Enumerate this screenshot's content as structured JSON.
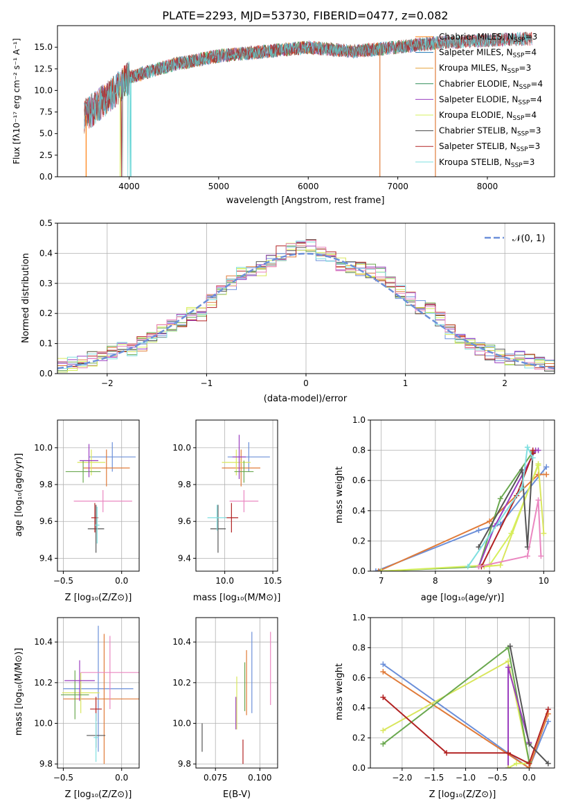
{
  "colors": {
    "spectrum": [
      "#ff7f0e",
      "#1f77b4",
      "#2ca02c",
      "#d62728",
      "#9467bd",
      "#8c564b",
      "#7f7f7f",
      "#b22222",
      "#5fd3d3"
    ],
    "lines": [
      "#6b8fd9",
      "#e07b39",
      "#d9e65c",
      "#6aa84f",
      "#9a3dbf",
      "#d6ef5c",
      "#555555",
      "#b22222",
      "#7fdfe0",
      "#ea86c0"
    ],
    "gauss": "#6b8fd9"
  },
  "chart_data": [
    {
      "type": "line",
      "title": "PLATE=2293, MJD=53730, FIBERID=0477, z=0.082",
      "xlabel": "wavelength [Angstrom, rest frame]",
      "ylabel": "Flux [fλ10⁻¹⁷ erg cm⁻² s⁻¹ A⁻¹]",
      "xlim": [
        3200,
        8750
      ],
      "ylim": [
        0,
        17.5
      ],
      "xticks": [
        "4000",
        "5000",
        "6000",
        "7000",
        "8000"
      ],
      "yticks": [
        "0.0",
        "2.5",
        "5.0",
        "7.5",
        "10.0",
        "12.5",
        "15.0"
      ],
      "legend_placement": "upper-right",
      "legend": [
        "Chabrier MILES, N_SSP=3",
        "Salpeter MILES, N_SSP=4",
        "Kroupa MILES, N_SSP=3",
        "Chabrier ELODIE, N_SSP=4",
        "Salpeter ELODIE, N_SSP=4",
        "Kroupa ELODIE, N_SSP=4",
        "Chabrier STELIB, N_SSP=3",
        "Salpeter STELIB, N_SSP=3",
        "Kroupa STELIB, N_SSP=3"
      ],
      "series_shape": {
        "x": [
          3500,
          3800,
          4000,
          4500,
          5000,
          5500,
          6000,
          6500,
          7000,
          7400,
          8500
        ],
        "y": [
          7.0,
          9.5,
          11.5,
          13.0,
          14.0,
          14.5,
          15.0,
          14.5,
          15.0,
          15.5,
          16.0
        ]
      }
    },
    {
      "type": "bar",
      "xlabel": "(data-model)/error",
      "ylabel": "Normed distribution",
      "xlim": [
        -2.5,
        2.5
      ],
      "ylim": [
        0,
        0.5
      ],
      "xticks": [
        "−2",
        "−1",
        "0",
        "1",
        "2"
      ],
      "yticks": [
        "0.0",
        "0.1",
        "0.2",
        "0.3",
        "0.4",
        "0.5"
      ],
      "grid": true,
      "legend_placement": "upper-right",
      "legend": [
        "𝒩(0, 1)"
      ],
      "histogram_centers": [
        -2.45,
        -2.35,
        -2.25,
        -2.15,
        -2.05,
        -1.95,
        -1.85,
        -1.75,
        -1.65,
        -1.55,
        -1.45,
        -1.35,
        -1.25,
        -1.15,
        -1.05,
        -0.95,
        -0.85,
        -0.75,
        -0.65,
        -0.55,
        -0.45,
        -0.35,
        -0.25,
        -0.15,
        -0.05,
        0.05,
        0.15,
        0.25,
        0.35,
        0.45,
        0.55,
        0.65,
        0.75,
        0.85,
        0.95,
        1.05,
        1.15,
        1.25,
        1.35,
        1.45,
        1.55,
        1.65,
        1.75,
        1.85,
        1.95,
        2.05,
        2.15,
        2.25,
        2.35,
        2.45
      ],
      "histogram_values": [
        0.03,
        0.035,
        0.04,
        0.05,
        0.05,
        0.07,
        0.08,
        0.08,
        0.1,
        0.12,
        0.14,
        0.16,
        0.18,
        0.2,
        0.2,
        0.24,
        0.27,
        0.3,
        0.33,
        0.34,
        0.35,
        0.38,
        0.4,
        0.41,
        0.42,
        0.43,
        0.4,
        0.39,
        0.36,
        0.36,
        0.35,
        0.34,
        0.33,
        0.3,
        0.27,
        0.25,
        0.22,
        0.21,
        0.18,
        0.14,
        0.12,
        0.1,
        0.08,
        0.07,
        0.06,
        0.05,
        0.05,
        0.04,
        0.03,
        0.03
      ]
    },
    {
      "type": "scatter",
      "xlabel": "Z [log₁₀(Z/Z⊙)]",
      "ylabel": "age  [log₁₀(age/yr)]",
      "xlim": [
        -0.55,
        0.15
      ],
      "ylim": [
        9.33,
        10.15
      ],
      "xticks": [
        "−0.5",
        "0.0"
      ],
      "yticks": [
        "9.4",
        "9.6",
        "9.8",
        "10.0"
      ],
      "points": [
        {
          "x": -0.08,
          "y": 9.95,
          "xerr": 0.2,
          "yerr": 0.08
        },
        {
          "x": -0.13,
          "y": 9.89,
          "xerr": 0.2,
          "yerr": 0.1
        },
        {
          "x": -0.26,
          "y": 9.92,
          "xerr": 0.12,
          "yerr": 0.07
        },
        {
          "x": -0.33,
          "y": 9.87,
          "xerr": 0.15,
          "yerr": 0.06
        },
        {
          "x": -0.28,
          "y": 9.93,
          "xerr": 0.08,
          "yerr": 0.09
        },
        {
          "x": -0.16,
          "y": 9.71,
          "xerr": 0.25,
          "yerr": 0.06
        },
        {
          "x": -0.22,
          "y": 9.56,
          "xerr": 0.07,
          "yerr": 0.13
        },
        {
          "x": -0.23,
          "y": 9.62,
          "xerr": 0.03,
          "yerr": 0.08
        },
        {
          "x": -0.21,
          "y": 9.58,
          "xerr": 0.02,
          "yerr": 0.1
        }
      ]
    },
    {
      "type": "scatter",
      "xlabel": "mass [log₁₀(M/M⊙)]",
      "ylabel": "",
      "xlim": [
        9.7,
        10.55
      ],
      "ylim": [
        9.33,
        10.15
      ],
      "xticks": [
        "10.0",
        "10.5"
      ],
      "yticks": [
        "9.4",
        "9.6",
        "9.8",
        "10.0"
      ],
      "points": [
        {
          "x": 10.25,
          "y": 9.95,
          "xerr": 0.22,
          "yerr": 0.08
        },
        {
          "x": 10.17,
          "y": 9.89,
          "xerr": 0.2,
          "yerr": 0.1
        },
        {
          "x": 10.12,
          "y": 9.92,
          "xerr": 0.15,
          "yerr": 0.07
        },
        {
          "x": 10.2,
          "y": 9.87,
          "xerr": 0.1,
          "yerr": 0.06
        },
        {
          "x": 10.15,
          "y": 9.95,
          "xerr": 0.07,
          "yerr": 0.12
        },
        {
          "x": 10.2,
          "y": 9.71,
          "xerr": 0.15,
          "yerr": 0.06
        },
        {
          "x": 9.93,
          "y": 9.56,
          "xerr": 0.08,
          "yerr": 0.13
        },
        {
          "x": 10.07,
          "y": 9.62,
          "xerr": 0.07,
          "yerr": 0.08
        },
        {
          "x": 9.92,
          "y": 9.62,
          "xerr": 0.1,
          "yerr": 0.07
        }
      ]
    },
    {
      "type": "line",
      "xlabel": "age  [log₁₀(age/yr)]",
      "ylabel": "mass weight",
      "xlim": [
        6.8,
        10.2
      ],
      "ylim": [
        0,
        1
      ],
      "xticks": [
        "7",
        "8",
        "9",
        "10"
      ],
      "yticks": [
        "0.0",
        "0.2",
        "0.4",
        "0.6",
        "0.8",
        "1.0"
      ],
      "grid": true,
      "series": [
        {
          "x": [
            6.9,
            8.8,
            9.2,
            10.05
          ],
          "y": [
            0.0,
            0.27,
            0.31,
            0.69
          ]
        },
        {
          "x": [
            6.95,
            9.0,
            9.9,
            10.05
          ],
          "y": [
            0.0,
            0.33,
            0.64,
            0.64
          ]
        },
        {
          "x": [
            8.9,
            9.2,
            9.9,
            10.0
          ],
          "y": [
            0.03,
            0.04,
            0.71,
            0.25
          ]
        },
        {
          "x": [
            7.0,
            8.8,
            9.2,
            9.8
          ],
          "y": [
            0.0,
            0.03,
            0.48,
            0.79
          ]
        },
        {
          "x": [
            8.8,
            9.1,
            9.85,
            9.9
          ],
          "y": [
            0.03,
            0.3,
            0.8,
            0.8
          ]
        },
        {
          "x": [
            7.0,
            9.0,
            9.4,
            9.9
          ],
          "y": [
            0.0,
            0.04,
            0.25,
            0.7
          ]
        },
        {
          "x": [
            8.8,
            9.6,
            9.7,
            9.8
          ],
          "y": [
            0.16,
            0.67,
            0.16,
            0.78
          ]
        },
        {
          "x": [
            8.85,
            9.5,
            9.8,
            9.8
          ],
          "y": [
            0.03,
            0.5,
            0.78,
            0.8
          ]
        },
        {
          "x": [
            8.6,
            9.6,
            9.7,
            9.8
          ],
          "y": [
            0.03,
            0.55,
            0.82,
            0.75
          ]
        },
        {
          "x": [
            8.8,
            9.7,
            9.9,
            9.95
          ],
          "y": [
            0.03,
            0.1,
            0.47,
            0.1
          ]
        }
      ]
    },
    {
      "type": "scatter",
      "xlabel": "Z [log₁₀(Z/Z⊙)]",
      "ylabel": "mass [log₁₀(M/M⊙)]",
      "xlim": [
        -0.55,
        0.15
      ],
      "ylim": [
        9.78,
        10.52
      ],
      "xticks": [
        "−0.5",
        "0.0"
      ],
      "yticks": [
        "9.8",
        "10.0",
        "10.2",
        "10.4"
      ],
      "points": [
        {
          "x": -0.2,
          "y": 10.17,
          "xerr": 0.3,
          "yerr": 0.31
        },
        {
          "x": -0.15,
          "y": 10.12,
          "xerr": 0.35,
          "yerr": 0.32
        },
        {
          "x": -0.35,
          "y": 10.15,
          "xerr": 0.16,
          "yerr": 0.1
        },
        {
          "x": -0.4,
          "y": 10.14,
          "xerr": 0.12,
          "yerr": 0.12
        },
        {
          "x": -0.36,
          "y": 10.21,
          "xerr": 0.13,
          "yerr": 0.1
        },
        {
          "x": -0.1,
          "y": 10.25,
          "xerr": 0.25,
          "yerr": 0.18
        },
        {
          "x": -0.22,
          "y": 9.94,
          "xerr": 0.08,
          "yerr": 0.06
        },
        {
          "x": -0.22,
          "y": 10.07,
          "xerr": 0.05,
          "yerr": 0.06
        },
        {
          "x": -0.22,
          "y": 9.93,
          "xerr": 0.02,
          "yerr": 0.12
        }
      ]
    },
    {
      "type": "scatter",
      "xlabel": "E(B-V)",
      "ylabel": "",
      "xlim": [
        0.064,
        0.11
      ],
      "ylim": [
        9.78,
        10.52
      ],
      "xticks": [
        "0.075",
        "0.100"
      ],
      "yticks": [
        "9.8",
        "10.0",
        "10.2",
        "10.4"
      ],
      "points": [
        {
          "x": 0.0955,
          "y": 10.25,
          "yerr": 0.2
        },
        {
          "x": 0.0925,
          "y": 10.2,
          "yerr": 0.16
        },
        {
          "x": 0.087,
          "y": 10.1,
          "yerr": 0.13
        },
        {
          "x": 0.0915,
          "y": 10.18,
          "yerr": 0.12
        },
        {
          "x": 0.0865,
          "y": 10.05,
          "yerr": 0.08
        },
        {
          "x": 0.106,
          "y": 10.27,
          "yerr": 0.18
        },
        {
          "x": 0.0675,
          "y": 9.93,
          "yerr": 0.07
        },
        {
          "x": 0.0905,
          "y": 9.86,
          "yerr": 0.06
        }
      ]
    },
    {
      "type": "line",
      "xlabel": "Z [log₁₀(Z/Z⊙)]",
      "ylabel": "mass weight",
      "xlim": [
        -2.5,
        0.4
      ],
      "ylim": [
        0,
        1
      ],
      "xticks": [
        "−2.0",
        "−1.5",
        "−1.0",
        "−0.5",
        "0.0"
      ],
      "yticks": [
        "0.0",
        "0.2",
        "0.4",
        "0.6",
        "0.8",
        "1.0"
      ],
      "grid": true,
      "series": [
        {
          "x": [
            -2.3,
            0.0,
            0.3
          ],
          "y": [
            0.69,
            0.0,
            0.31
          ]
        },
        {
          "x": [
            -2.3,
            0.0,
            0.3
          ],
          "y": [
            0.64,
            0.0,
            0.36
          ]
        },
        {
          "x": [
            -2.3,
            -0.33,
            0.0
          ],
          "y": [
            0.25,
            0.71,
            0.04
          ]
        },
        {
          "x": [
            -2.3,
            -0.33,
            0.0
          ],
          "y": [
            0.16,
            0.8,
            0.04
          ]
        },
        {
          "x": [
            -0.33,
            -0.33,
            0.0
          ],
          "y": [
            0.0,
            0.67,
            0.17
          ]
        },
        {
          "x": [
            -0.33,
            -0.2,
            0.0
          ],
          "y": [
            0.0,
            0.03,
            0.03
          ]
        },
        {
          "x": [
            -0.3,
            0.0,
            0.3
          ],
          "y": [
            0.81,
            0.16,
            0.03
          ]
        },
        {
          "x": [
            -2.3,
            -1.3,
            -0.33,
            0.0,
            0.3
          ],
          "y": [
            0.47,
            0.1,
            0.1,
            0.03,
            0.39
          ]
        }
      ]
    }
  ]
}
